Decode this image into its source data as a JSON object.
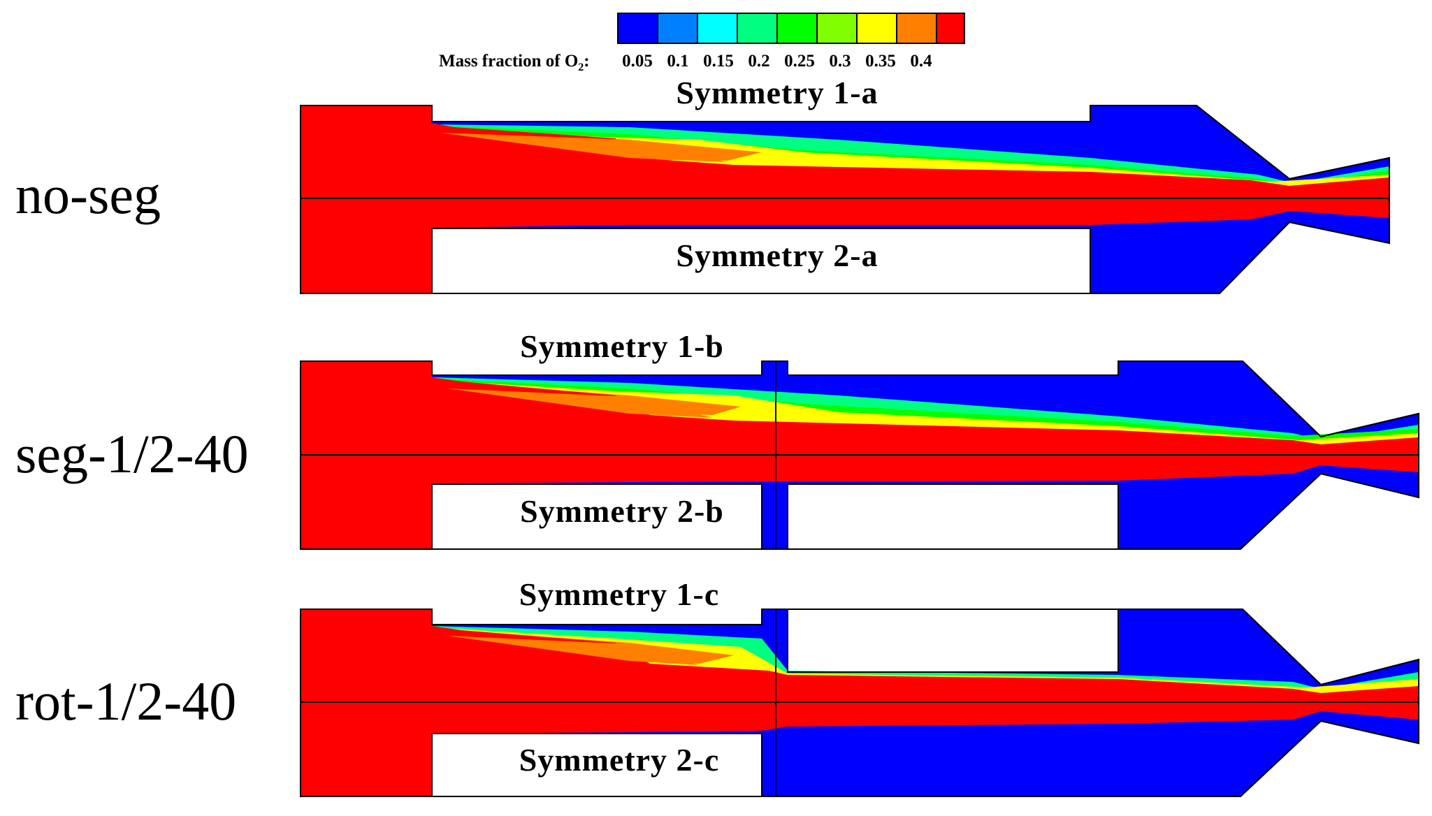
{
  "colorbar": {
    "title_prefix": "Mass fraction of O",
    "title_subscript": "2",
    "title_suffix": ":",
    "levels": [
      {
        "value": "0.05",
        "color": "#0000ff"
      },
      {
        "value": "0.1",
        "color": "#0080ff"
      },
      {
        "value": "0.15",
        "color": "#00ffff"
      },
      {
        "value": "0.2",
        "color": "#00ff80"
      },
      {
        "value": "0.25",
        "color": "#00ff00"
      },
      {
        "value": "0.3",
        "color": "#80ff00"
      },
      {
        "value": "0.35",
        "color": "#ffff00"
      },
      {
        "value": "0.4",
        "color": "#ff8000"
      }
    ],
    "max_color": "#ff0000"
  },
  "panels": [
    {
      "case": "no-seg",
      "top_label": "Symmetry 1-a",
      "bottom_label": "Symmetry 2-a"
    },
    {
      "case": "seg-1/2-40",
      "top_label": "Symmetry 1-b",
      "bottom_label": "Symmetry 2-b"
    },
    {
      "case": "rot-1/2-40",
      "top_label": "Symmetry 1-c",
      "bottom_label": "Symmetry 2-c"
    }
  ]
}
